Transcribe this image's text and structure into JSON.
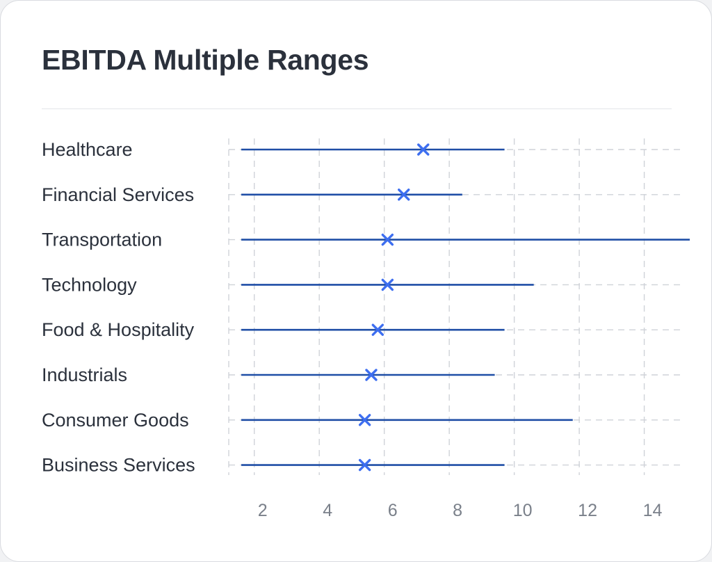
{
  "card": {
    "title": "EBITDA Multiple Ranges"
  },
  "chart_data": {
    "type": "range",
    "title": "EBITDA Multiple Ranges",
    "xlabel": "",
    "ylabel": "",
    "xlim": [
      1.6,
      15.4
    ],
    "xticks": [
      2,
      4,
      6,
      8,
      10,
      12,
      14
    ],
    "grid": true,
    "categories": [
      "Healthcare",
      "Financial Services",
      "Transportation",
      "Technology",
      "Food & Hospitality",
      "Industrials",
      "Consumer Goods",
      "Business Services"
    ],
    "ranges": [
      {
        "category": "Healthcare",
        "low": 1.6,
        "high": 9.7,
        "marker": 7.2
      },
      {
        "category": "Financial Services",
        "low": 1.6,
        "high": 8.4,
        "marker": 6.6
      },
      {
        "category": "Transportation",
        "low": 1.6,
        "high": 15.4,
        "marker": 6.1
      },
      {
        "category": "Technology",
        "low": 1.6,
        "high": 10.6,
        "marker": 6.1
      },
      {
        "category": "Food & Hospitality",
        "low": 1.6,
        "high": 9.7,
        "marker": 5.8
      },
      {
        "category": "Industrials",
        "low": 1.6,
        "high": 9.4,
        "marker": 5.6
      },
      {
        "category": "Consumer Goods",
        "low": 1.6,
        "high": 11.8,
        "marker": 5.4
      },
      {
        "category": "Business Services",
        "low": 1.6,
        "high": 9.7,
        "marker": 5.4
      }
    ],
    "colors": {
      "range_line": "#1f4ea6",
      "marker": "#3d6ef0",
      "grid": "#cfd2d8",
      "category_label": "#2b313c",
      "tick_label": "#7a808a"
    }
  }
}
